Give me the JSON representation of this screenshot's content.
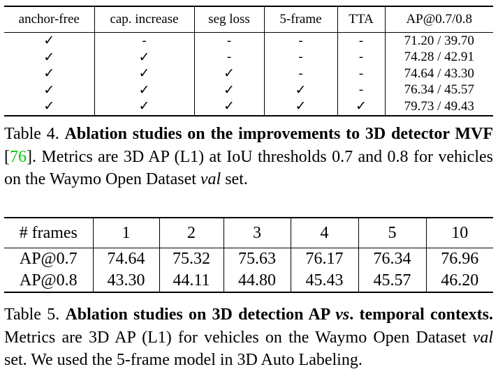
{
  "table4": {
    "header": [
      "anchor-free",
      "cap. increase",
      "seg loss",
      "5-frame",
      "TTA",
      "AP@0.7/0.8"
    ],
    "rows": [
      [
        "✓",
        "-",
        "-",
        "-",
        "-",
        "71.20 / 39.70"
      ],
      [
        "✓",
        "✓",
        "-",
        "-",
        "-",
        "74.28 / 42.91"
      ],
      [
        "✓",
        "✓",
        "✓",
        "-",
        "-",
        "74.64 / 43.30"
      ],
      [
        "✓",
        "✓",
        "✓",
        "✓",
        "-",
        "76.34 / 45.57"
      ],
      [
        "✓",
        "✓",
        "✓",
        "✓",
        "✓",
        "79.73 / 49.43"
      ]
    ]
  },
  "caption4": [
    {
      "text": "Table 4. "
    },
    {
      "text": "Ablation studies on the improvements to 3D detector MVF",
      "style": "bold"
    },
    {
      "text": " ["
    },
    {
      "text": "76",
      "style": "link"
    },
    {
      "text": "]. Metrics are 3D AP (L1) at IoU thresholds 0.7 and 0.8 for vehicles on the Waymo Open Dataset "
    },
    {
      "text": "val",
      "style": "italic"
    },
    {
      "text": " set."
    }
  ],
  "table5": {
    "header": [
      "# frames",
      "1",
      "2",
      "3",
      "4",
      "5",
      "10"
    ],
    "rows": [
      [
        "AP@0.7",
        "74.64",
        "75.32",
        "75.63",
        "76.17",
        "76.34",
        "76.96"
      ],
      [
        "AP@0.8",
        "43.30",
        "44.11",
        "44.80",
        "45.43",
        "45.57",
        "46.20"
      ]
    ]
  },
  "caption5": [
    {
      "text": "Table 5. "
    },
    {
      "text": "Ablation studies on 3D detection AP ",
      "style": "bold"
    },
    {
      "text": "vs",
      "style": "bold-italic"
    },
    {
      "text": ". temporal contexts.",
      "style": "bold"
    },
    {
      "text": " Metrics are 3D AP (L1) for vehicles on the Waymo Open Dataset "
    },
    {
      "text": "val",
      "style": "italic"
    },
    {
      "text": " set. We used the 5-frame model in 3D Auto Labeling."
    }
  ]
}
